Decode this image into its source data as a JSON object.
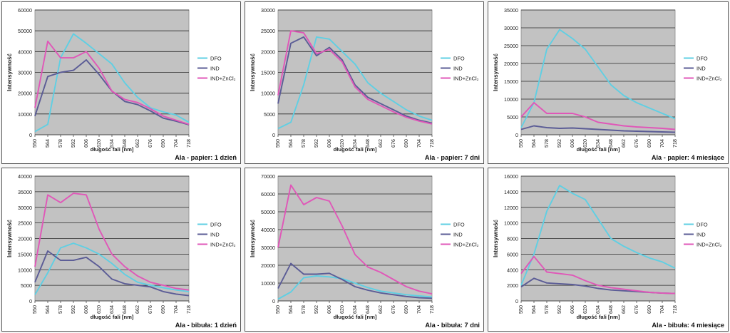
{
  "figure": {
    "description_free": true
  },
  "chart_data": [
    {
      "type": "line",
      "caption": "Ala - papier: 1 dzień",
      "xlabel": "długość fali [nm]",
      "ylabel": "Intensywność",
      "x": [
        550,
        564,
        578,
        592,
        606,
        620,
        634,
        648,
        662,
        676,
        690,
        704,
        718
      ],
      "ylim": [
        0,
        60000
      ],
      "yticks": [
        0,
        10000,
        20000,
        30000,
        40000,
        50000,
        60000
      ],
      "legend": [
        "DFO",
        "IND",
        "IND+ZnCl₂"
      ],
      "series": [
        {
          "name": "DFO",
          "color": "#5fcfe3",
          "values": [
            1500,
            5000,
            37000,
            48500,
            44000,
            39000,
            34000,
            25000,
            18000,
            13000,
            11000,
            9500,
            6000
          ]
        },
        {
          "name": "IND",
          "color": "#5b5c96",
          "values": [
            9000,
            28000,
            30000,
            31000,
            36000,
            29000,
            21000,
            16000,
            14500,
            11500,
            8000,
            6500,
            4800
          ]
        },
        {
          "name": "IND+ZnCl₂",
          "color": "#e057b8",
          "values": [
            13000,
            45000,
            37000,
            37000,
            40000,
            32000,
            21000,
            17000,
            15500,
            12500,
            9000,
            7000,
            5000
          ]
        }
      ]
    },
    {
      "type": "line",
      "caption": "Ala - papier: 7 dni",
      "xlabel": "długość fali [nm]",
      "ylabel": "Intensywność",
      "x": [
        550,
        564,
        578,
        592,
        606,
        620,
        634,
        648,
        662,
        676,
        690,
        704,
        718
      ],
      "ylim": [
        0,
        30000
      ],
      "yticks": [
        0,
        5000,
        10000,
        15000,
        20000,
        25000,
        30000
      ],
      "legend": [
        "DFO",
        "IND",
        "IND+ZnCl₂"
      ],
      "series": [
        {
          "name": "DFO",
          "color": "#5fcfe3",
          "values": [
            1500,
            3000,
            12000,
            23500,
            23000,
            20000,
            17000,
            12500,
            10000,
            8000,
            6000,
            4500,
            3500
          ]
        },
        {
          "name": "IND",
          "color": "#5b5c96",
          "values": [
            7500,
            22000,
            23500,
            19000,
            21000,
            18000,
            12000,
            9000,
            7500,
            6000,
            4500,
            3500,
            2800
          ]
        },
        {
          "name": "IND+ZnCl₂",
          "color": "#e057b8",
          "values": [
            9500,
            25000,
            24500,
            19500,
            20500,
            17500,
            11500,
            8500,
            7000,
            5500,
            4200,
            3300,
            2600
          ]
        }
      ]
    },
    {
      "type": "line",
      "caption": "Ala - papier: 4 miesiące",
      "xlabel": "długość fali [nm]",
      "ylabel": "Intensywność",
      "x": [
        550,
        564,
        578,
        592,
        606,
        620,
        634,
        648,
        662,
        676,
        690,
        704,
        718
      ],
      "ylim": [
        0,
        35000
      ],
      "yticks": [
        0,
        5000,
        10000,
        15000,
        20000,
        25000,
        30000,
        35000
      ],
      "legend": [
        "DFO",
        "IND",
        "IND+ZnCl₂"
      ],
      "series": [
        {
          "name": "DFO",
          "color": "#5fcfe3",
          "values": [
            2000,
            9000,
            24000,
            29500,
            27000,
            24000,
            19000,
            14000,
            11000,
            9000,
            7500,
            6000,
            4500
          ]
        },
        {
          "name": "IND",
          "color": "#5b5c96",
          "values": [
            1500,
            2500,
            2000,
            1800,
            1900,
            1700,
            1500,
            1300,
            1100,
            1000,
            900,
            800,
            700
          ]
        },
        {
          "name": "IND+ZnCl₂",
          "color": "#e057b8",
          "values": [
            5000,
            9000,
            6000,
            6000,
            6000,
            5000,
            3500,
            3000,
            2500,
            2200,
            2000,
            1800,
            1500
          ]
        }
      ]
    },
    {
      "type": "line",
      "caption": "Ala - bibuła: 1 dzień",
      "xlabel": "długość fali [nm]",
      "ylabel": "Intensywność",
      "x": [
        550,
        564,
        578,
        592,
        606,
        620,
        634,
        648,
        662,
        676,
        690,
        704,
        718
      ],
      "ylim": [
        0,
        40000
      ],
      "yticks": [
        0,
        5000,
        10000,
        15000,
        20000,
        25000,
        30000,
        35000,
        40000
      ],
      "legend": [
        "DFO",
        "IND",
        "IND+ZnCl₂"
      ],
      "series": [
        {
          "name": "DFO",
          "color": "#5fcfe3",
          "values": [
            2000,
            9000,
            17000,
            18500,
            17000,
            15000,
            12000,
            8500,
            6000,
            5000,
            4200,
            3500,
            3000
          ]
        },
        {
          "name": "IND",
          "color": "#5b5c96",
          "values": [
            6000,
            16000,
            13000,
            13000,
            14000,
            11000,
            7000,
            5500,
            5000,
            4500,
            3000,
            2200,
            1700
          ]
        },
        {
          "name": "IND+ZnCl₂",
          "color": "#e057b8",
          "values": [
            11000,
            34000,
            31500,
            34500,
            34000,
            23000,
            15000,
            11000,
            8000,
            6000,
            5000,
            4000,
            3500
          ]
        }
      ]
    },
    {
      "type": "line",
      "caption": "Ala - bibuła: 7 dni",
      "xlabel": "długość fali [nm]",
      "ylabel": "Intensywność",
      "x": [
        550,
        564,
        578,
        592,
        606,
        620,
        634,
        648,
        662,
        676,
        690,
        704,
        718
      ],
      "ylim": [
        0,
        70000
      ],
      "yticks": [
        0,
        10000,
        20000,
        30000,
        40000,
        50000,
        60000,
        70000
      ],
      "legend": [
        "DFO",
        "IND",
        "IND+ZnCl₂"
      ],
      "series": [
        {
          "name": "DFO",
          "color": "#5fcfe3",
          "values": [
            1000,
            5000,
            13000,
            14000,
            13500,
            12500,
            10000,
            7500,
            5500,
            4500,
            3500,
            2800,
            2200
          ]
        },
        {
          "name": "IND",
          "color": "#5b5c96",
          "values": [
            7000,
            21000,
            15000,
            15000,
            15500,
            12000,
            8000,
            6000,
            4500,
            3500,
            2500,
            1800,
            1500
          ]
        },
        {
          "name": "IND+ZnCl₂",
          "color": "#e057b8",
          "values": [
            30000,
            65000,
            54000,
            58000,
            56000,
            42000,
            26000,
            19000,
            16000,
            12000,
            8000,
            5500,
            4000
          ]
        }
      ]
    },
    {
      "type": "line",
      "caption": "Ala - bibuła: 4 miesiące",
      "xlabel": "długość fali [nm]",
      "ylabel": "Intensywność",
      "x": [
        550,
        564,
        578,
        592,
        606,
        620,
        634,
        648,
        662,
        676,
        690,
        704,
        718
      ],
      "ylim": [
        0,
        16000
      ],
      "yticks": [
        0,
        2000,
        4000,
        6000,
        8000,
        10000,
        12000,
        14000,
        16000
      ],
      "legend": [
        "DFO",
        "IND",
        "IND+ZnCl₂"
      ],
      "series": [
        {
          "name": "DFO",
          "color": "#5fcfe3",
          "values": [
            2000,
            6000,
            11500,
            14800,
            13800,
            13000,
            10500,
            8000,
            7000,
            6200,
            5500,
            5000,
            4200
          ]
        },
        {
          "name": "IND",
          "color": "#5b5c96",
          "values": [
            1800,
            2900,
            2300,
            2200,
            2100,
            1900,
            1600,
            1400,
            1300,
            1200,
            1100,
            1000,
            950
          ]
        },
        {
          "name": "IND+ZnCl₂",
          "color": "#e057b8",
          "values": [
            3500,
            5700,
            3700,
            3500,
            3300,
            2600,
            2000,
            1700,
            1500,
            1300,
            1100,
            1000,
            950
          ]
        }
      ]
    }
  ]
}
